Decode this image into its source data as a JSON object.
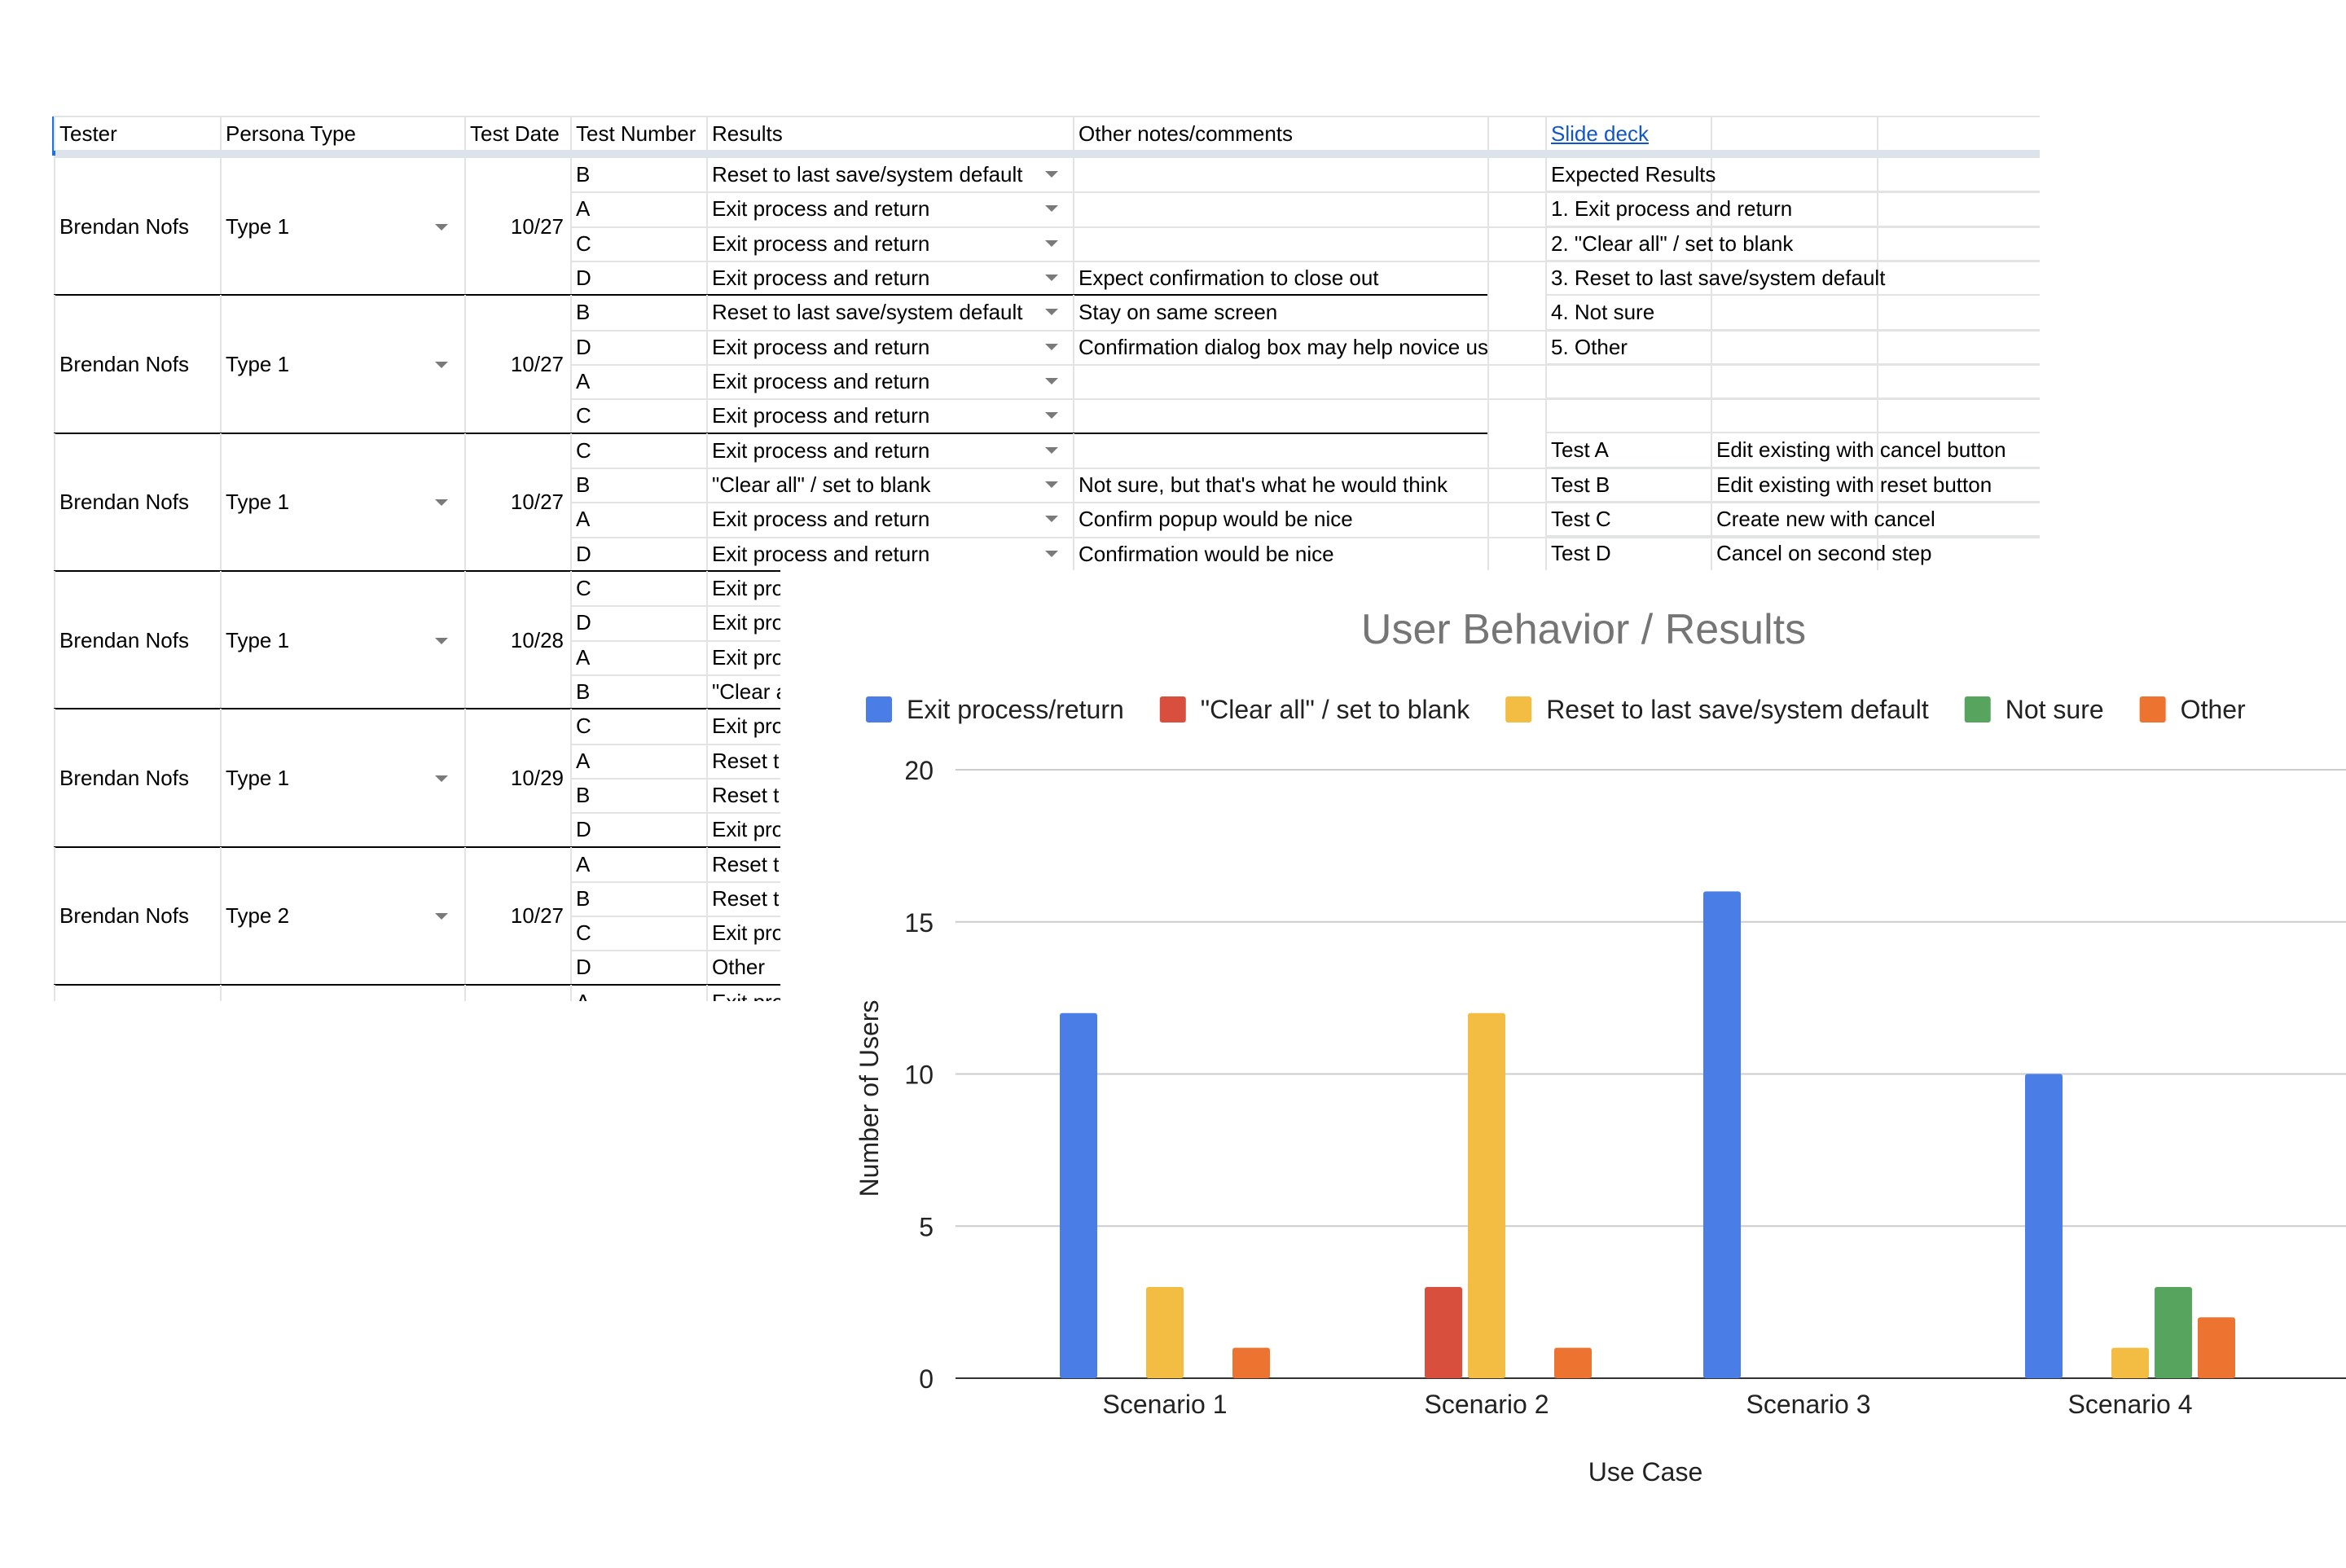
{
  "sheet": {
    "headers": {
      "tester": "Tester",
      "persona": "Persona Type",
      "date": "Test Date",
      "number": "Test Number",
      "results": "Results",
      "notes": "Other notes/comments",
      "link": "Slide deck"
    },
    "groups": [
      {
        "tester": "Brendan Nofs",
        "persona": "Type 1",
        "date": "10/27",
        "rows": [
          {
            "test": "B",
            "result": "Reset to last save/system default",
            "note": ""
          },
          {
            "test": "A",
            "result": "Exit process and return",
            "note": ""
          },
          {
            "test": "C",
            "result": "Exit process and return",
            "note": ""
          },
          {
            "test": "D",
            "result": "Exit process and return",
            "note": "Expect confirmation to close out"
          }
        ]
      },
      {
        "tester": "Brendan Nofs",
        "persona": "Type 1",
        "date": "10/27",
        "rows": [
          {
            "test": "B",
            "result": "Reset to last save/system default",
            "note": "Stay on same screen"
          },
          {
            "test": "D",
            "result": "Exit process and return",
            "note": "Confirmation dialog box may help novice users"
          },
          {
            "test": "A",
            "result": "Exit process and return",
            "note": ""
          },
          {
            "test": "C",
            "result": "Exit process and return",
            "note": ""
          }
        ]
      },
      {
        "tester": "Brendan Nofs",
        "persona": "Type 1",
        "date": "10/27",
        "rows": [
          {
            "test": "C",
            "result": "Exit process and return",
            "note": ""
          },
          {
            "test": "B",
            "result": "\"Clear all\" / set to blank",
            "note": "Not sure, but that's what he would think"
          },
          {
            "test": "A",
            "result": "Exit process and return",
            "note": "Confirm popup would be nice"
          },
          {
            "test": "D",
            "result": "Exit process and return",
            "note": "Confirmation would be nice"
          }
        ]
      },
      {
        "tester": "Brendan Nofs",
        "persona": "Type 1",
        "date": "10/28",
        "rows": [
          {
            "test": "C",
            "result": "Exit pro",
            "note": ""
          },
          {
            "test": "D",
            "result": "Exit pro",
            "note": ""
          },
          {
            "test": "A",
            "result": "Exit pro",
            "note": ""
          },
          {
            "test": "B",
            "result": "\"Clear a",
            "note": ""
          }
        ]
      },
      {
        "tester": "Brendan Nofs",
        "persona": "Type 1",
        "date": "10/29",
        "rows": [
          {
            "test": "C",
            "result": "Exit pro",
            "note": ""
          },
          {
            "test": "A",
            "result": "Reset t",
            "note": ""
          },
          {
            "test": "B",
            "result": "Reset t",
            "note": ""
          },
          {
            "test": "D",
            "result": "Exit pro",
            "note": ""
          }
        ]
      },
      {
        "tester": "Brendan Nofs",
        "persona": "Type 2",
        "date": "10/27",
        "rows": [
          {
            "test": "A",
            "result": "Reset t",
            "note": ""
          },
          {
            "test": "B",
            "result": "Reset t",
            "note": ""
          },
          {
            "test": "C",
            "result": "Exit pro",
            "note": ""
          },
          {
            "test": "D",
            "result": "Other",
            "note": ""
          }
        ]
      }
    ],
    "partial_row": {
      "test": "A",
      "result": "Exit pro"
    },
    "side_panel": [
      {
        "col1": "Expected Results",
        "col2": ""
      },
      {
        "col1": "1. Exit process and return",
        "col2": ""
      },
      {
        "col1": "2. \"Clear all\" / set to blank",
        "col2": ""
      },
      {
        "col1": "3. Reset to last save/system default",
        "col2": ""
      },
      {
        "col1": "4. Not sure",
        "col2": ""
      },
      {
        "col1": "5. Other",
        "col2": ""
      },
      {
        "col1": "",
        "col2": ""
      },
      {
        "col1": "",
        "col2": ""
      },
      {
        "col1": "Test A",
        "col2": "Edit existing with cancel button"
      },
      {
        "col1": "Test B",
        "col2": "Edit existing with reset button"
      },
      {
        "col1": "Test C",
        "col2": "Create new with cancel"
      },
      {
        "col1": "Test D",
        "col2": "Cancel on second step"
      }
    ]
  },
  "chart_data": {
    "type": "bar",
    "title": "User Behavior / Results",
    "xlabel": "Use Case",
    "ylabel": "Number of Users",
    "categories": [
      "Scenario 1",
      "Scenario 2",
      "Scenario 3",
      "Scenario 4"
    ],
    "ylim": [
      0,
      20
    ],
    "yticks": [
      0,
      5,
      10,
      15,
      20
    ],
    "grid": true,
    "legend_position": "top",
    "series": [
      {
        "name": "Exit process/return",
        "color": "#4a7ee6",
        "values": [
          12,
          0,
          16,
          10
        ]
      },
      {
        "name": "\"Clear all\" / set to blank",
        "color": "#d94f3d",
        "values": [
          0,
          3,
          0,
          0
        ]
      },
      {
        "name": "Reset to last save/system default",
        "color": "#f2bd42",
        "values": [
          3,
          12,
          0,
          1
        ]
      },
      {
        "name": "Not sure",
        "color": "#56a45e",
        "values": [
          0,
          0,
          0,
          3
        ]
      },
      {
        "name": "Other",
        "color": "#ec7430",
        "values": [
          1,
          1,
          0,
          2
        ]
      }
    ]
  }
}
